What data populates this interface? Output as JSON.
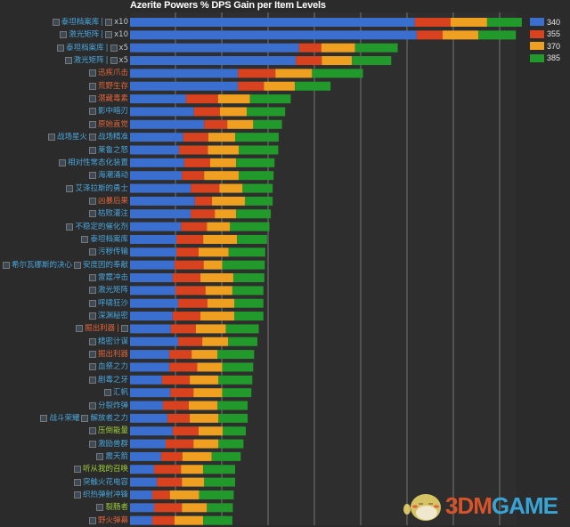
{
  "chart_data": {
    "type": "bar",
    "orientation": "horizontal",
    "stacked": true,
    "title": "Azerite Powers % DPS Gain per Item Levels",
    "xlabel": "",
    "ylabel": "",
    "grid": true,
    "legend_position": "top-right",
    "colors": {
      "340": "#3a6fd0",
      "355": "#d9421f",
      "370": "#f0a020",
      "385": "#219a2b"
    },
    "label_colors": {
      "blue": "#4aa6dc",
      "orange": "#e0653a",
      "green": "#9fcf3a"
    },
    "series_names": [
      "340",
      "355",
      "370",
      "385"
    ],
    "categories": [
      {
        "parts": [
          "泰坦档案库",
          "x10"
        ],
        "color": "blue"
      },
      {
        "parts": [
          "激光矩阵",
          "x10"
        ],
        "color": "blue"
      },
      {
        "parts": [
          "泰坦档案库",
          "x5"
        ],
        "color": "blue"
      },
      {
        "parts": [
          "激光矩阵",
          "x5"
        ],
        "color": "blue"
      },
      {
        "parts": [
          "迅疾爪击"
        ],
        "color": "orange"
      },
      {
        "parts": [
          "荒野生存"
        ],
        "color": "orange"
      },
      {
        "parts": [
          "潜藏毒素"
        ],
        "color": "orange"
      },
      {
        "parts": [
          "影中暗刃"
        ],
        "color": "blue"
      },
      {
        "parts": [
          "原始直觉"
        ],
        "color": "orange"
      },
      {
        "parts": [
          "战场星火",
          "战场精准"
        ],
        "color": "blue"
      },
      {
        "parts": [
          "莱鲁之怒"
        ],
        "color": "blue"
      },
      {
        "parts": [
          "相对性常态化装置"
        ],
        "color": "blue"
      },
      {
        "parts": [
          "海潮涌动"
        ],
        "color": "blue"
      },
      {
        "parts": [
          "艾泽拉斯的勇士"
        ],
        "color": "blue"
      },
      {
        "parts": [
          "凶暴后果"
        ],
        "color": "orange"
      },
      {
        "parts": [
          "枯败灌注"
        ],
        "color": "blue"
      },
      {
        "parts": [
          "不稳定的催化剂"
        ],
        "color": "blue"
      },
      {
        "parts": [
          "泰坦档案库"
        ],
        "color": "blue"
      },
      {
        "parts": [
          "污秽传输"
        ],
        "color": "blue"
      },
      {
        "parts": [
          "希尔瓦娜斯的决心",
          "安度因的奉献"
        ],
        "color": "blue"
      },
      {
        "parts": [
          "雷霆冲击"
        ],
        "color": "blue"
      },
      {
        "parts": [
          "激光矩阵"
        ],
        "color": "blue"
      },
      {
        "parts": [
          "呼啸狂沙"
        ],
        "color": "blue"
      },
      {
        "parts": [
          "深渊秘密"
        ],
        "color": "blue"
      },
      {
        "parts": [
          "掘出利器",
          ""
        ],
        "color": "orange"
      },
      {
        "parts": [
          "精密计谋"
        ],
        "color": "blue"
      },
      {
        "parts": [
          "掘出利器"
        ],
        "color": "orange"
      },
      {
        "parts": [
          "血祭之力"
        ],
        "color": "blue"
      },
      {
        "parts": [
          "剧毒之牙"
        ],
        "color": "blue"
      },
      {
        "parts": [
          "汇帆"
        ],
        "color": "blue"
      },
      {
        "parts": [
          "分裂炸弹"
        ],
        "color": "blue"
      },
      {
        "parts": [
          "战斗荣耀",
          "解放者之力"
        ],
        "color": "blue"
      },
      {
        "parts": [
          "压倒能量"
        ],
        "color": "green"
      },
      {
        "parts": [
          "激励兽群"
        ],
        "color": "blue"
      },
      {
        "parts": [
          "震天箭"
        ],
        "color": "blue"
      },
      {
        "parts": [
          "听从我的召唤"
        ],
        "color": "green"
      },
      {
        "parts": [
          "突触火花电容"
        ],
        "color": "blue"
      },
      {
        "parts": [
          "织热弹射冲锋"
        ],
        "color": "blue"
      },
      {
        "parts": [
          "裂肠者"
        ],
        "color": "green"
      },
      {
        "parts": [
          "野火弹幕"
        ],
        "color": "orange"
      }
    ],
    "series": [
      {
        "name": "340",
        "values": [
          6.15,
          6.19,
          3.65,
          3.58,
          2.33,
          2.33,
          1.21,
          1.38,
          1.6,
          1.15,
          1.06,
          1.17,
          1.12,
          1.31,
          1.4,
          1.31,
          1.1,
          1.0,
          1.0,
          0.96,
          0.92,
          0.98,
          1.04,
          0.92,
          0.88,
          1.04,
          0.85,
          0.85,
          0.69,
          0.87,
          0.71,
          0.81,
          0.92,
          0.77,
          0.67,
          0.52,
          0.58,
          0.48,
          0.52,
          0.48
        ]
      },
      {
        "name": "355",
        "values": [
          0.77,
          0.56,
          0.48,
          0.56,
          0.81,
          0.56,
          0.69,
          0.56,
          0.5,
          0.54,
          0.62,
          0.56,
          0.48,
          0.62,
          0.37,
          0.52,
          0.56,
          0.58,
          0.48,
          0.63,
          0.6,
          0.65,
          0.63,
          0.6,
          0.54,
          0.52,
          0.48,
          0.6,
          0.6,
          0.5,
          0.56,
          0.48,
          0.56,
          0.6,
          0.46,
          0.58,
          0.54,
          0.38,
          0.6,
          0.48
        ]
      },
      {
        "name": "370",
        "values": [
          0.79,
          0.77,
          0.73,
          0.65,
          0.79,
          0.67,
          0.69,
          0.58,
          0.56,
          0.58,
          0.67,
          0.56,
          0.75,
          0.5,
          0.71,
          0.46,
          0.5,
          0.73,
          0.65,
          0.4,
          0.71,
          0.58,
          0.58,
          0.73,
          0.65,
          0.56,
          0.56,
          0.54,
          0.62,
          0.62,
          0.62,
          0.62,
          0.52,
          0.54,
          0.63,
          0.48,
          0.48,
          0.63,
          0.54,
          0.62
        ]
      },
      {
        "name": "385",
        "values": [
          0.75,
          0.81,
          0.92,
          0.85,
          1.1,
          0.77,
          0.88,
          0.83,
          0.62,
          0.94,
          0.85,
          0.83,
          0.75,
          0.65,
          0.6,
          0.75,
          0.85,
          0.65,
          0.79,
          0.92,
          0.67,
          0.67,
          0.63,
          0.63,
          0.71,
          0.63,
          0.79,
          0.67,
          0.73,
          0.63,
          0.65,
          0.63,
          0.5,
          0.54,
          0.63,
          0.69,
          0.67,
          0.75,
          0.56,
          0.63
        ]
      }
    ],
    "xlim": [
      0,
      8.5
    ]
  },
  "watermark": {
    "text_a": "3DM",
    "text_b": "GAME"
  }
}
